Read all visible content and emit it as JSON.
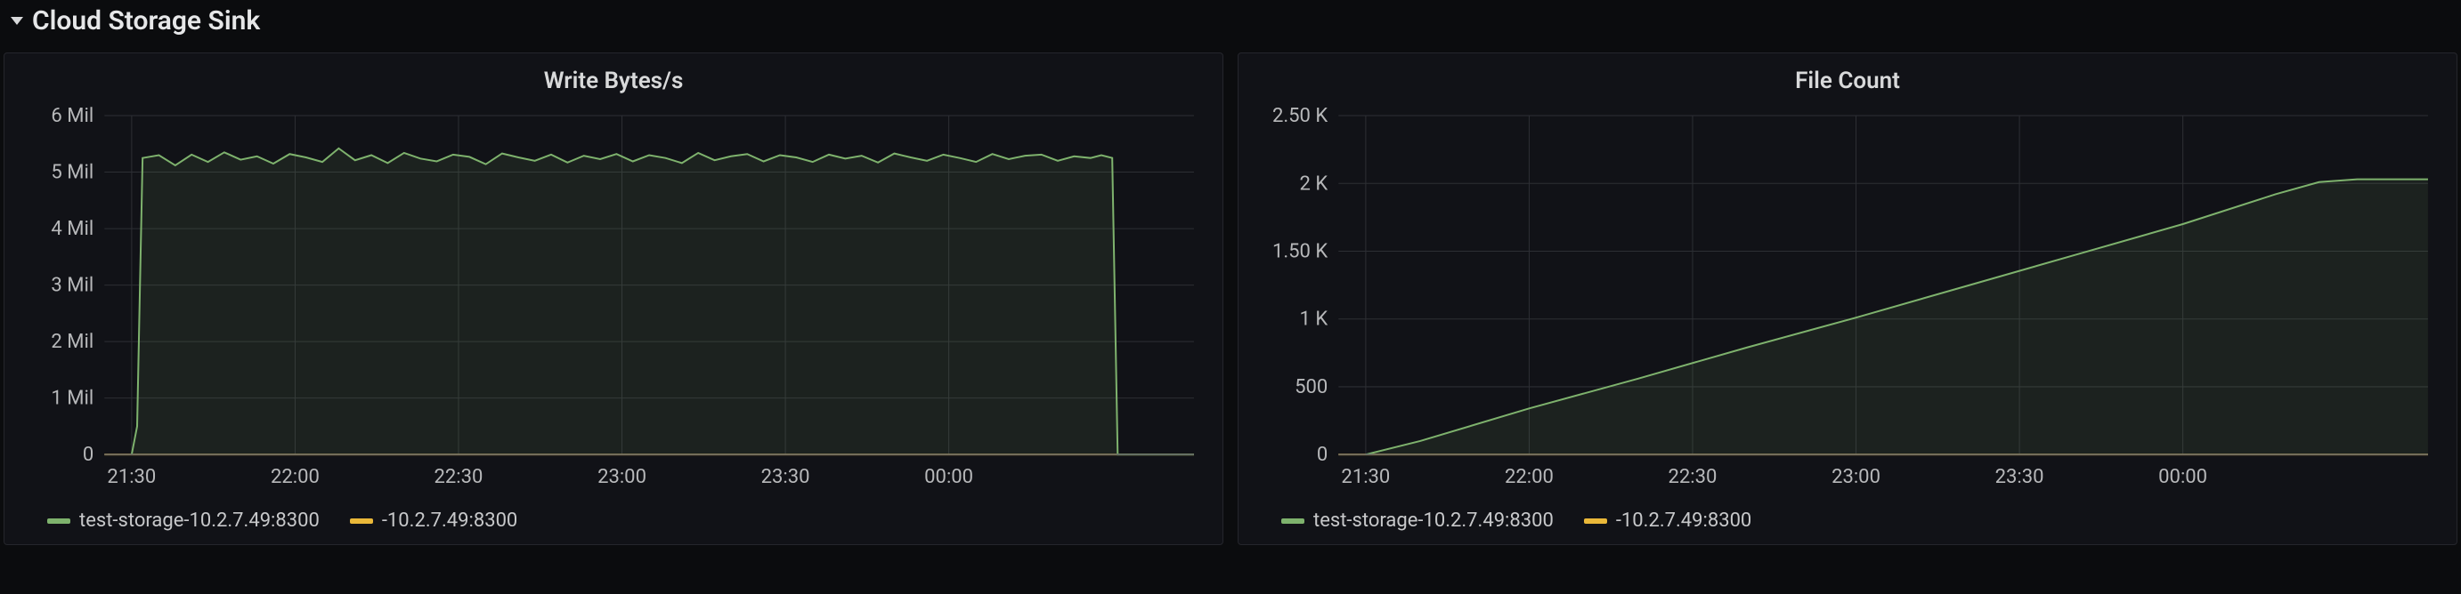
{
  "section": {
    "title": "Cloud Storage Sink",
    "collapsed": false
  },
  "common": {
    "x_ticks": [
      "21:30",
      "22:00",
      "22:30",
      "23:00",
      "23:30",
      "00:00"
    ],
    "x_range_minutes": [
      1285,
      1485
    ],
    "background_color": "#111217",
    "grid_color": "#2d2f34",
    "axis_color": "#5c5f66",
    "text_color": "#b7b8ba",
    "title_fontsize": 26,
    "tick_fontsize": 22,
    "legend_fontsize": 22,
    "line_width": 2
  },
  "panels": [
    {
      "id": "write_bytes",
      "title": "Write Bytes/s",
      "type": "line",
      "y_ticks": [
        {
          "v": 0,
          "label": "0"
        },
        {
          "v": 1000000,
          "label": "1 Mil"
        },
        {
          "v": 2000000,
          "label": "2 Mil"
        },
        {
          "v": 3000000,
          "label": "3 Mil"
        },
        {
          "v": 4000000,
          "label": "4 Mil"
        },
        {
          "v": 5000000,
          "label": "5 Mil"
        },
        {
          "v": 6000000,
          "label": "6 Mil"
        }
      ],
      "ylim": [
        0,
        6000000
      ],
      "series": [
        {
          "name": "test-storage-10.2.7.49:8300",
          "color": "#7eb26d",
          "area": true,
          "points": [
            [
              1290,
              0
            ],
            [
              1291,
              500000
            ],
            [
              1292,
              5250000
            ],
            [
              1295,
              5300000
            ],
            [
              1298,
              5120000
            ],
            [
              1301,
              5310000
            ],
            [
              1304,
              5180000
            ],
            [
              1307,
              5350000
            ],
            [
              1310,
              5220000
            ],
            [
              1313,
              5280000
            ],
            [
              1316,
              5150000
            ],
            [
              1319,
              5320000
            ],
            [
              1322,
              5260000
            ],
            [
              1325,
              5180000
            ],
            [
              1328,
              5420000
            ],
            [
              1331,
              5210000
            ],
            [
              1334,
              5300000
            ],
            [
              1337,
              5160000
            ],
            [
              1340,
              5340000
            ],
            [
              1343,
              5240000
            ],
            [
              1346,
              5190000
            ],
            [
              1349,
              5310000
            ],
            [
              1352,
              5270000
            ],
            [
              1355,
              5140000
            ],
            [
              1358,
              5330000
            ],
            [
              1361,
              5260000
            ],
            [
              1364,
              5200000
            ],
            [
              1367,
              5310000
            ],
            [
              1370,
              5170000
            ],
            [
              1373,
              5290000
            ],
            [
              1376,
              5230000
            ],
            [
              1379,
              5320000
            ],
            [
              1382,
              5190000
            ],
            [
              1385,
              5300000
            ],
            [
              1388,
              5250000
            ],
            [
              1391,
              5160000
            ],
            [
              1394,
              5340000
            ],
            [
              1397,
              5210000
            ],
            [
              1400,
              5280000
            ],
            [
              1403,
              5320000
            ],
            [
              1406,
              5190000
            ],
            [
              1409,
              5300000
            ],
            [
              1412,
              5260000
            ],
            [
              1415,
              5180000
            ],
            [
              1418,
              5310000
            ],
            [
              1421,
              5240000
            ],
            [
              1424,
              5290000
            ],
            [
              1427,
              5170000
            ],
            [
              1430,
              5330000
            ],
            [
              1433,
              5260000
            ],
            [
              1436,
              5200000
            ],
            [
              1439,
              5310000
            ],
            [
              1442,
              5250000
            ],
            [
              1445,
              5180000
            ],
            [
              1448,
              5320000
            ],
            [
              1451,
              5230000
            ],
            [
              1454,
              5290000
            ],
            [
              1457,
              5310000
            ],
            [
              1460,
              5200000
            ],
            [
              1463,
              5280000
            ],
            [
              1466,
              5250000
            ],
            [
              1468,
              5300000
            ],
            [
              1470,
              5250000
            ],
            [
              1471,
              0
            ],
            [
              1485,
              0
            ]
          ]
        },
        {
          "name": "-10.2.7.49:8300",
          "color": "#eab839",
          "area": false,
          "points": [
            [
              1285,
              0
            ],
            [
              1485,
              0
            ]
          ]
        }
      ],
      "legend": [
        {
          "label": "test-storage-10.2.7.49:8300",
          "color": "#7eb26d"
        },
        {
          "label": "-10.2.7.49:8300",
          "color": "#eab839"
        }
      ]
    },
    {
      "id": "file_count",
      "title": "File Count",
      "type": "line",
      "y_ticks": [
        {
          "v": 0,
          "label": "0"
        },
        {
          "v": 500,
          "label": "500"
        },
        {
          "v": 1000,
          "label": "1 K"
        },
        {
          "v": 1500,
          "label": "1.50 K"
        },
        {
          "v": 2000,
          "label": "2 K"
        },
        {
          "v": 2500,
          "label": "2.50 K"
        }
      ],
      "ylim": [
        0,
        2500
      ],
      "series": [
        {
          "name": "test-storage-10.2.7.49:8300",
          "color": "#7eb26d",
          "area": true,
          "points": [
            [
              1290,
              0
            ],
            [
              1300,
              100
            ],
            [
              1320,
              340
            ],
            [
              1340,
              560
            ],
            [
              1360,
              790
            ],
            [
              1380,
              1010
            ],
            [
              1400,
              1240
            ],
            [
              1420,
              1470
            ],
            [
              1440,
              1700
            ],
            [
              1457,
              1920
            ],
            [
              1465,
              2010
            ],
            [
              1472,
              2030
            ],
            [
              1485,
              2030
            ]
          ]
        },
        {
          "name": "-10.2.7.49:8300",
          "color": "#eab839",
          "area": false,
          "points": [
            [
              1285,
              0
            ],
            [
              1485,
              0
            ]
          ]
        }
      ],
      "legend": [
        {
          "label": "test-storage-10.2.7.49:8300",
          "color": "#7eb26d"
        },
        {
          "label": "-10.2.7.49:8300",
          "color": "#eab839"
        }
      ]
    }
  ]
}
